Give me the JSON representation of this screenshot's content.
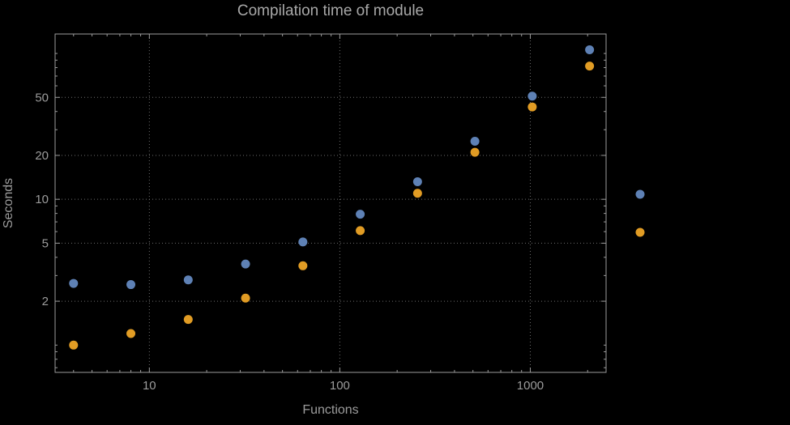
{
  "title": "Compilation time of module",
  "chart_data": {
    "type": "scatter",
    "title": "Compilation time of module",
    "xlabel": "Functions",
    "ylabel": "Seconds",
    "x_scale": "log",
    "y_scale": "log",
    "x": [
      4,
      8,
      16,
      32,
      64,
      128,
      256,
      512,
      1024,
      2048
    ],
    "series": [
      {
        "name": "series-1-blue",
        "color": "#5e81b5",
        "values": [
          2.65,
          2.6,
          2.8,
          3.6,
          5.1,
          7.9,
          13.2,
          25,
          51,
          106
        ]
      },
      {
        "name": "series-2-orange",
        "color": "#e19c24",
        "values": [
          1.0,
          1.2,
          1.5,
          2.1,
          3.5,
          6.1,
          11,
          21,
          43,
          82
        ]
      }
    ],
    "x_ticks": [
      10,
      100,
      1000
    ],
    "y_ticks": [
      2,
      5,
      10,
      20,
      50
    ],
    "xlim": [
      3.2,
      2500
    ],
    "ylim": [
      0.65,
      136
    ],
    "grid": true,
    "grid_style": "dotted",
    "background": "#000000",
    "legend_position": "right-outside"
  },
  "legend": {
    "markers": [
      {
        "series": "series-1-blue",
        "color": "#5e81b5"
      },
      {
        "series": "series-2-orange",
        "color": "#e19c24"
      }
    ]
  },
  "colors": {
    "background": "#000000",
    "text": "#9c9c9c",
    "title_text": "#a8a8a8",
    "grid": "#6e6e6e",
    "frame": "#9b9b9b",
    "series_blue": "#5e81b5",
    "series_orange": "#e19c24"
  }
}
